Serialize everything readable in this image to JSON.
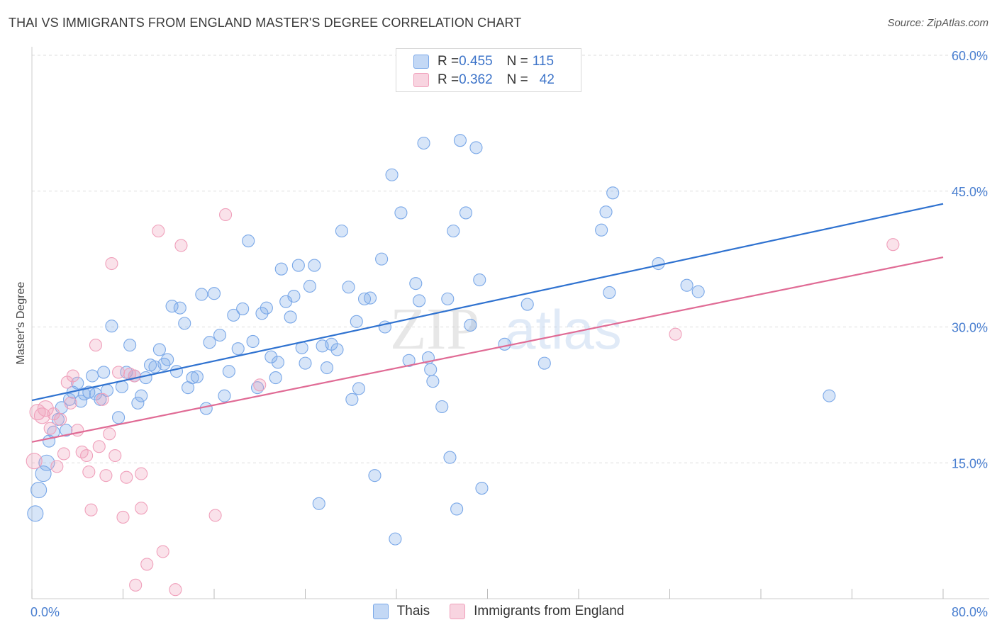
{
  "title": "THAI VS IMMIGRANTS FROM ENGLAND MASTER'S DEGREE CORRELATION CHART",
  "source": "Source: ZipAtlas.com",
  "watermark": {
    "zip": "ZIP",
    "atlas": "atlas"
  },
  "legend_top": {
    "rows": [
      {
        "r_label": "R = ",
        "r_value": "0.455",
        "n_label": "N = ",
        "n_value": "115",
        "color": "#7aa8e8"
      },
      {
        "r_label": "R = ",
        "r_value": "0.362",
        "n_label": "N = ",
        "n_value": "42",
        "color": "#f0a0bb"
      }
    ]
  },
  "chart_data": {
    "type": "scatter",
    "ylabel": "Master's Degree",
    "xlim": [
      0,
      80
    ],
    "ylim": [
      0,
      60
    ],
    "x_tick_labels": {
      "min": "0.0%",
      "max": "80.0%"
    },
    "y_ticks": [
      15,
      30,
      45,
      60
    ],
    "y_tick_labels": [
      "15.0%",
      "30.0%",
      "45.0%",
      "60.0%"
    ],
    "grid": true,
    "series": [
      {
        "name": "Thais",
        "color": "#7aa8e8",
        "fill": "rgba(122,168,232,0.30)",
        "trend": {
          "x": [
            0,
            80
          ],
          "y": [
            21.9,
            43.6
          ]
        },
        "points": [
          [
            0.3,
            9.4
          ],
          [
            0.6,
            12.0
          ],
          [
            1.0,
            13.8
          ],
          [
            1.3,
            15.0
          ],
          [
            1.5,
            17.4
          ],
          [
            1.9,
            18.4
          ],
          [
            2.3,
            19.8
          ],
          [
            2.6,
            21.1
          ],
          [
            3.0,
            18.6
          ],
          [
            3.3,
            22.0
          ],
          [
            3.6,
            22.8
          ],
          [
            4.0,
            23.8
          ],
          [
            4.3,
            21.8
          ],
          [
            4.6,
            22.6
          ],
          [
            5.0,
            22.8
          ],
          [
            5.3,
            24.6
          ],
          [
            5.6,
            22.6
          ],
          [
            6.0,
            22.0
          ],
          [
            6.3,
            25.0
          ],
          [
            6.6,
            23.0
          ],
          [
            7.0,
            30.1
          ],
          [
            7.6,
            20.0
          ],
          [
            7.9,
            23.4
          ],
          [
            8.3,
            25.0
          ],
          [
            8.6,
            28.0
          ],
          [
            9.0,
            24.6
          ],
          [
            9.3,
            21.6
          ],
          [
            9.6,
            22.4
          ],
          [
            10.0,
            24.4
          ],
          [
            10.4,
            25.8
          ],
          [
            10.8,
            25.6
          ],
          [
            11.2,
            27.5
          ],
          [
            11.6,
            25.9
          ],
          [
            11.9,
            26.4
          ],
          [
            12.3,
            32.3
          ],
          [
            12.7,
            25.1
          ],
          [
            13.0,
            32.1
          ],
          [
            13.4,
            30.4
          ],
          [
            13.7,
            23.3
          ],
          [
            14.1,
            24.4
          ],
          [
            14.5,
            24.5
          ],
          [
            14.9,
            33.6
          ],
          [
            15.3,
            21.0
          ],
          [
            15.6,
            28.3
          ],
          [
            16.0,
            33.7
          ],
          [
            16.5,
            29.1
          ],
          [
            16.9,
            22.4
          ],
          [
            17.3,
            25.1
          ],
          [
            17.7,
            31.3
          ],
          [
            18.1,
            27.6
          ],
          [
            18.5,
            32.0
          ],
          [
            19.0,
            39.5
          ],
          [
            19.4,
            28.4
          ],
          [
            19.8,
            23.3
          ],
          [
            20.2,
            31.5
          ],
          [
            20.6,
            32.1
          ],
          [
            21.0,
            26.7
          ],
          [
            21.4,
            24.4
          ],
          [
            21.6,
            26.1
          ],
          [
            21.9,
            36.4
          ],
          [
            22.3,
            32.8
          ],
          [
            22.7,
            31.1
          ],
          [
            23.0,
            33.4
          ],
          [
            23.4,
            36.8
          ],
          [
            23.7,
            27.7
          ],
          [
            24.0,
            26.0
          ],
          [
            24.4,
            34.5
          ],
          [
            24.8,
            36.8
          ],
          [
            25.2,
            10.5
          ],
          [
            25.5,
            27.9
          ],
          [
            25.9,
            25.5
          ],
          [
            26.3,
            28.1
          ],
          [
            26.8,
            27.5
          ],
          [
            27.2,
            40.6
          ],
          [
            27.8,
            34.4
          ],
          [
            28.1,
            22.0
          ],
          [
            28.5,
            30.6
          ],
          [
            28.7,
            23.2
          ],
          [
            29.2,
            33.1
          ],
          [
            29.7,
            33.2
          ],
          [
            30.1,
            13.6
          ],
          [
            30.7,
            37.5
          ],
          [
            31.0,
            30.0
          ],
          [
            31.6,
            46.8
          ],
          [
            31.9,
            6.6
          ],
          [
            32.4,
            42.6
          ],
          [
            33.1,
            26.3
          ],
          [
            33.7,
            34.8
          ],
          [
            34.0,
            32.9
          ],
          [
            34.4,
            50.3
          ],
          [
            34.8,
            26.6
          ],
          [
            35.0,
            25.3
          ],
          [
            35.2,
            24.0
          ],
          [
            36.0,
            21.2
          ],
          [
            36.5,
            33.1
          ],
          [
            36.7,
            15.6
          ],
          [
            37.0,
            40.6
          ],
          [
            37.3,
            9.9
          ],
          [
            37.6,
            50.6
          ],
          [
            38.1,
            42.6
          ],
          [
            38.5,
            30.2
          ],
          [
            39.0,
            49.8
          ],
          [
            39.3,
            35.2
          ],
          [
            39.5,
            12.2
          ],
          [
            41.5,
            28.1
          ],
          [
            43.5,
            32.5
          ],
          [
            45.0,
            26.0
          ],
          [
            50.0,
            40.7
          ],
          [
            50.4,
            42.7
          ],
          [
            50.7,
            33.8
          ],
          [
            51.0,
            44.8
          ],
          [
            55.0,
            37.0
          ],
          [
            57.5,
            34.6
          ],
          [
            58.5,
            33.9
          ],
          [
            70.0,
            22.4
          ]
        ]
      },
      {
        "name": "Immigrants from England",
        "color": "#f0a0bb",
        "fill": "rgba(240,160,187,0.30)",
        "trend": {
          "x": [
            0,
            80
          ],
          "y": [
            17.3,
            37.7
          ]
        },
        "points": [
          [
            0.2,
            15.2
          ],
          [
            0.5,
            20.6
          ],
          [
            0.9,
            20.2
          ],
          [
            1.2,
            21.0
          ],
          [
            1.6,
            18.8
          ],
          [
            1.9,
            20.4
          ],
          [
            2.2,
            14.6
          ],
          [
            2.5,
            19.8
          ],
          [
            2.8,
            16.0
          ],
          [
            3.1,
            23.9
          ],
          [
            3.4,
            21.6
          ],
          [
            3.6,
            24.6
          ],
          [
            4.0,
            18.6
          ],
          [
            4.4,
            16.2
          ],
          [
            4.8,
            15.8
          ],
          [
            5.0,
            14.0
          ],
          [
            5.2,
            9.8
          ],
          [
            5.6,
            28.0
          ],
          [
            5.9,
            16.8
          ],
          [
            6.2,
            22.0
          ],
          [
            6.5,
            13.6
          ],
          [
            6.8,
            18.2
          ],
          [
            7.0,
            37.0
          ],
          [
            7.3,
            15.8
          ],
          [
            7.6,
            25.0
          ],
          [
            8.0,
            9.0
          ],
          [
            8.3,
            13.4
          ],
          [
            8.6,
            24.8
          ],
          [
            9.0,
            24.6
          ],
          [
            9.6,
            13.8
          ],
          [
            9.6,
            10.0
          ],
          [
            10.1,
            3.8
          ],
          [
            11.1,
            40.6
          ],
          [
            11.5,
            5.2
          ],
          [
            12.6,
            1.0
          ],
          [
            13.1,
            39.0
          ],
          [
            16.1,
            9.2
          ],
          [
            17.0,
            42.4
          ],
          [
            20.0,
            23.6
          ],
          [
            56.5,
            29.2
          ],
          [
            75.6,
            39.1
          ],
          [
            9.1,
            1.5
          ]
        ]
      }
    ]
  },
  "bottom_legend": [
    {
      "label": "Thais",
      "color": "#7aa8e8"
    },
    {
      "label": "Immigrants from England",
      "color": "#f0a0bb"
    }
  ]
}
